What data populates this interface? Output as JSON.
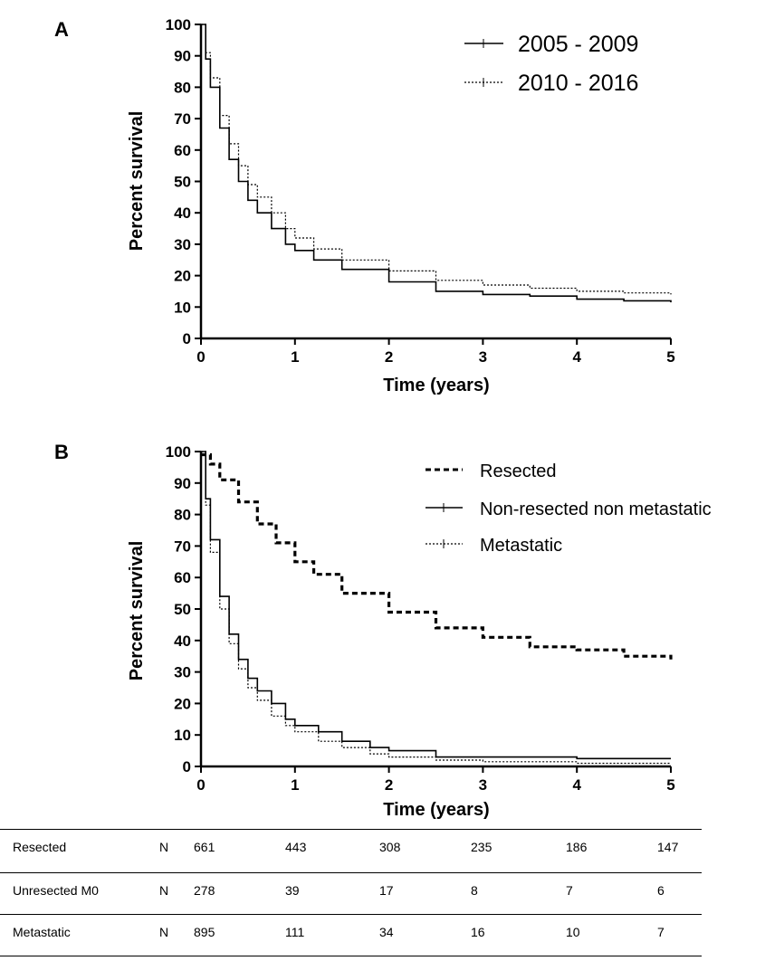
{
  "chart_data": [
    {
      "panel": "A",
      "type": "line",
      "xlabel": "Time (years)",
      "ylabel": "Percent survival",
      "xlim": [
        0,
        5
      ],
      "ylim": [
        0,
        100
      ],
      "x_ticks": [
        "0",
        "1",
        "2",
        "3",
        "4",
        "5"
      ],
      "y_ticks": [
        "0",
        "10",
        "20",
        "30",
        "40",
        "50",
        "60",
        "70",
        "80",
        "90",
        "100"
      ],
      "legend_position": "top-right",
      "series": [
        {
          "name": "2005 - 2009",
          "style": "solid",
          "x": [
            0,
            0.05,
            0.1,
            0.2,
            0.3,
            0.4,
            0.5,
            0.6,
            0.75,
            0.9,
            1.0,
            1.2,
            1.5,
            2.0,
            2.5,
            3.0,
            3.5,
            4.0,
            4.5,
            5.0
          ],
          "y": [
            100,
            89,
            80,
            67,
            57,
            50,
            44,
            40,
            35,
            30,
            28,
            25,
            22,
            18,
            15,
            14,
            13.5,
            12.5,
            12,
            11.5
          ]
        },
        {
          "name": "2010 - 2016",
          "style": "dotted",
          "x": [
            0,
            0.05,
            0.1,
            0.2,
            0.3,
            0.4,
            0.5,
            0.6,
            0.75,
            0.9,
            1.0,
            1.2,
            1.5,
            2.0,
            2.5,
            3.0,
            3.5,
            4.0,
            4.5,
            5.0
          ],
          "y": [
            100,
            91,
            83,
            71,
            62,
            55,
            49,
            45,
            40,
            35,
            32,
            28.5,
            25,
            21.5,
            18.5,
            17,
            16,
            15,
            14.5,
            14
          ]
        }
      ]
    },
    {
      "panel": "B",
      "type": "line",
      "xlabel": "Time (years)",
      "ylabel": "Percent survival",
      "xlim": [
        0,
        5
      ],
      "ylim": [
        0,
        100
      ],
      "x_ticks": [
        "0",
        "1",
        "2",
        "3",
        "4",
        "5"
      ],
      "y_ticks": [
        "0",
        "10",
        "20",
        "30",
        "40",
        "50",
        "60",
        "70",
        "80",
        "90",
        "100"
      ],
      "legend_position": "top-right",
      "series": [
        {
          "name": "Resected",
          "style": "dashed-thick",
          "x": [
            0,
            0.1,
            0.2,
            0.4,
            0.6,
            0.8,
            1.0,
            1.2,
            1.5,
            2.0,
            2.5,
            3.0,
            3.5,
            4.0,
            4.5,
            5.0
          ],
          "y": [
            99,
            96,
            91,
            84,
            77,
            71,
            65,
            61,
            55,
            49,
            44,
            41,
            38,
            37,
            35,
            34
          ]
        },
        {
          "name": "Non-resected non metastatic",
          "style": "solid",
          "x": [
            0,
            0.05,
            0.1,
            0.2,
            0.3,
            0.4,
            0.5,
            0.6,
            0.75,
            0.9,
            1.0,
            1.25,
            1.5,
            1.8,
            2.0,
            2.5,
            3.0,
            4.0,
            5.0
          ],
          "y": [
            100,
            85,
            72,
            54,
            42,
            34,
            28,
            24,
            20,
            15,
            13,
            11,
            8,
            6,
            5,
            3,
            3,
            2.5,
            2.5
          ]
        },
        {
          "name": "Metastatic",
          "style": "dotted",
          "x": [
            0,
            0.05,
            0.1,
            0.2,
            0.3,
            0.4,
            0.5,
            0.6,
            0.75,
            0.9,
            1.0,
            1.25,
            1.5,
            1.8,
            2.0,
            2.5,
            3.0,
            4.0,
            5.0
          ],
          "y": [
            100,
            83,
            68,
            50,
            39,
            31,
            25,
            21,
            16,
            13,
            11,
            8,
            6,
            4,
            3,
            2,
            1.5,
            1,
            1
          ]
        }
      ]
    }
  ],
  "risk_table": {
    "rows": [
      {
        "group": "Resected",
        "n_label": "N",
        "counts": [
          "661",
          "443",
          "308",
          "235",
          "186",
          "147"
        ]
      },
      {
        "group": "Unresected M0",
        "n_label": "N",
        "counts": [
          "278",
          "39",
          "17",
          "8",
          "7",
          "6"
        ]
      },
      {
        "group": "Metastatic",
        "n_label": "N",
        "counts": [
          "895",
          "111",
          "34",
          "16",
          "10",
          "7"
        ]
      }
    ]
  }
}
